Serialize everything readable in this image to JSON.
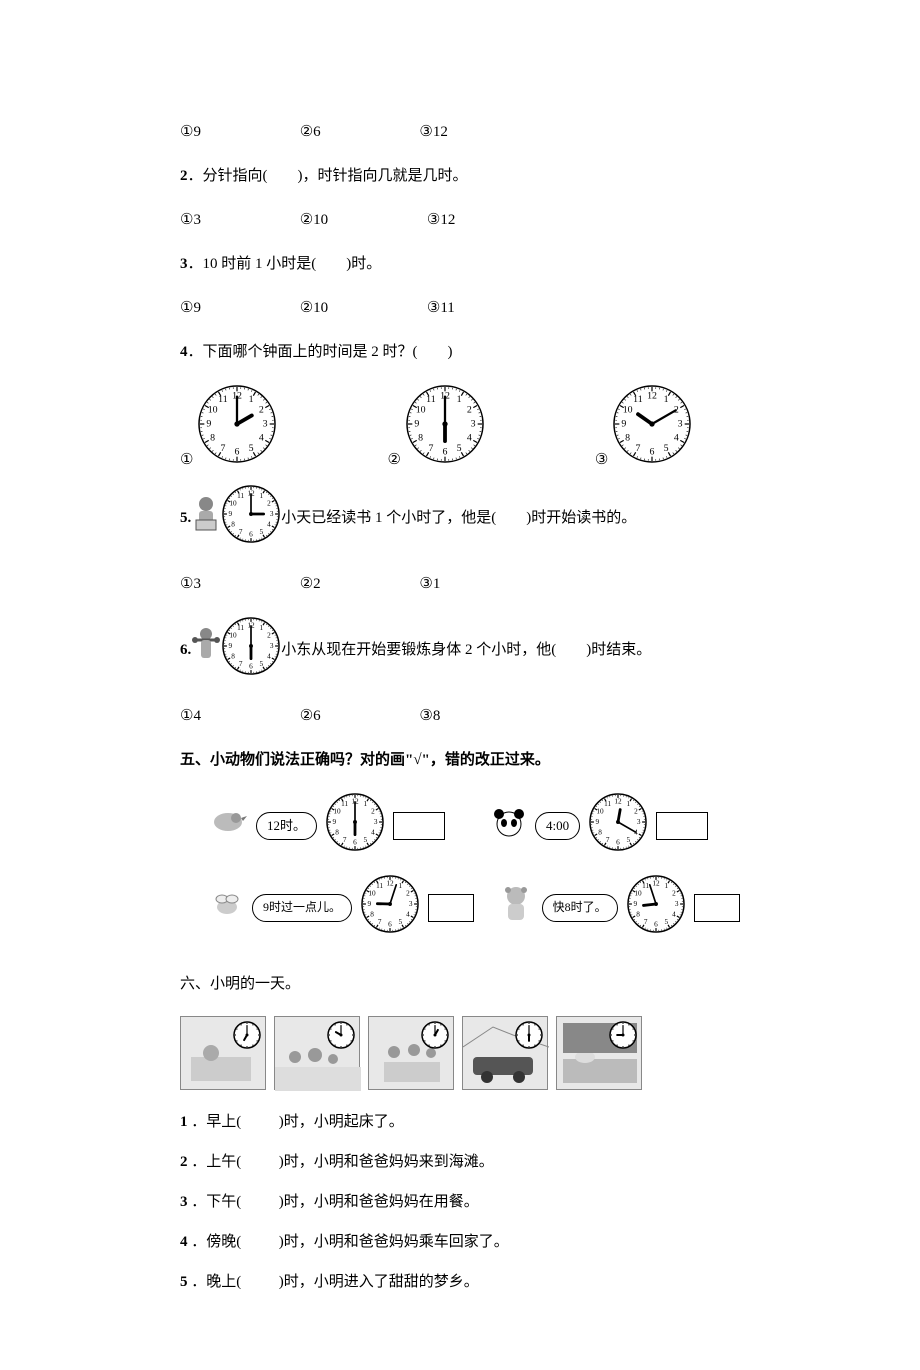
{
  "q1_options": {
    "a": "①9",
    "b": "②6",
    "c": "③12"
  },
  "q2": {
    "num": "2",
    "text_before": "．分针指向(",
    "text_after": ")，时针指向几就是几时。",
    "options": {
      "a": "①3",
      "b": "②10",
      "c": "③12"
    }
  },
  "q3": {
    "num": "3",
    "text_before": "．10 时前 1 小时是(",
    "text_after": ")时。",
    "options": {
      "a": "①9",
      "b": "②10",
      "c": "③11"
    }
  },
  "q4": {
    "num": "4",
    "text_before": "．下面哪个钟面上的时间是 2 时？(",
    "text_after": ")",
    "labels": {
      "a": "①",
      "b": "②",
      "c": "③"
    },
    "clocks": [
      {
        "hour": 2,
        "min": 0
      },
      {
        "hour": 6,
        "min": 0
      },
      {
        "hour": 10,
        "min": 10
      }
    ]
  },
  "q5": {
    "num": "5.",
    "text_before": "小天已经读书 1 个小时了，他是(",
    "text_after": ")时开始读书的。",
    "options": {
      "a": "①3",
      "b": "②2",
      "c": "③1"
    },
    "clock": {
      "hour": 3,
      "min": 0
    }
  },
  "q6": {
    "num": "6.",
    "text_before": "小东从现在开始要锻炼身体 2 个小时，他(",
    "text_after": ")时结束。",
    "options": {
      "a": "①4",
      "b": "②6",
      "c": "③8"
    },
    "clock": {
      "hour": 6,
      "min": 0
    }
  },
  "section5": {
    "title": "五、小动物们说法正确吗？对的画\"√\"，错的改正过来。",
    "items": [
      {
        "bubble": "12时。",
        "clock": {
          "hour": 6,
          "min": 0
        }
      },
      {
        "bubble": "4:00",
        "clock": {
          "hour": 12,
          "min": 20
        }
      },
      {
        "bubble": "9时过一点儿。",
        "clock": {
          "hour": 9,
          "min": 3
        }
      },
      {
        "bubble": "快8时了。",
        "clock": {
          "hour": 8,
          "min": 57,
          "hourOffset": -5
        }
      }
    ]
  },
  "section6": {
    "title": "六、小明的一天。",
    "scenes": [
      {
        "hour": 7,
        "min": 0
      },
      {
        "hour": 10,
        "min": 0
      },
      {
        "hour": 1,
        "min": 0
      },
      {
        "hour": 6,
        "min": 0
      },
      {
        "hour": 9,
        "min": 0
      }
    ],
    "q1": {
      "num": "1",
      "a": "．早上(",
      "b": ")时，小明起床了。"
    },
    "q2": {
      "num": "2",
      "a": "．上午(",
      "b": ")时，小明和爸爸妈妈来到海滩。"
    },
    "q3": {
      "num": "3",
      "a": "．下午(",
      "b": ")时，小明和爸爸妈妈在用餐。"
    },
    "q4": {
      "num": "4",
      "a": "．傍晚(",
      "b": ")时，小明和爸爸妈妈乘车回家了。"
    },
    "q5": {
      "num": "5",
      "a": "．晚上(",
      "b": ")时，小明进入了甜甜的梦乡。"
    }
  },
  "style": {
    "clock_large_r": 38,
    "clock_med_r": 28,
    "clock_small_r": 13,
    "clock_stroke": "#000000",
    "clock_fill": "#ffffff",
    "text_color": "#000000",
    "bg": "#ffffff"
  }
}
